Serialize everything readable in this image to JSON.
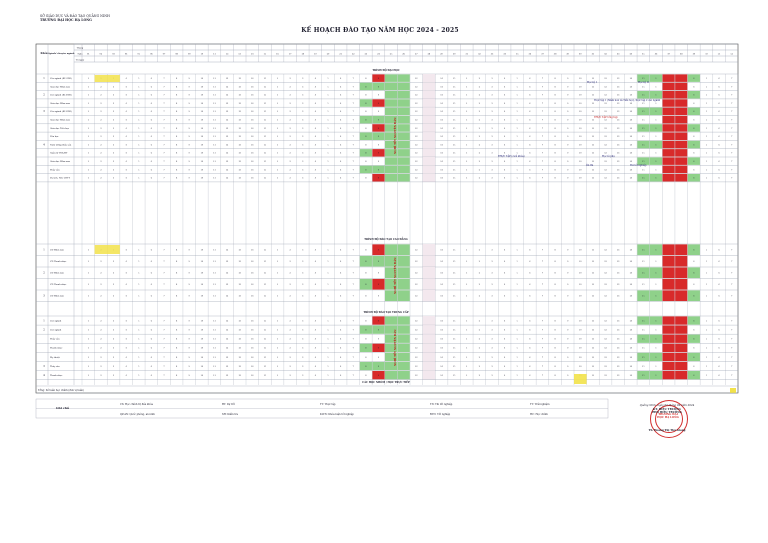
{
  "header": {
    "org": "Sở Giáo dục và Đào tạo Quảng Ninh",
    "school": "Trường Đại học Hạ Long",
    "title": "KẾ HOẠCH ĐÀO TẠO NĂM HỌC 2024 - 2025"
  },
  "table_head": {
    "col_khoa": "Khóa",
    "col_nganh": "Ngành/ chuyên ngành",
    "row_thang": "Tháng",
    "row_tuan": "Tuần",
    "row_ngay": "Từ ngày"
  },
  "weeks": [
    "01",
    "02",
    "03",
    "04",
    "05",
    "06",
    "07",
    "08",
    "09",
    "10",
    "11",
    "12",
    "13",
    "14",
    "15",
    "16",
    "17",
    "18",
    "19",
    "20",
    "21",
    "22",
    "23",
    "24",
    "25",
    "26",
    "27",
    "28",
    "29",
    "30",
    "31",
    "32",
    "33",
    "34",
    "35",
    "36",
    "37",
    "38",
    "39",
    "40",
    "41",
    "42",
    "43",
    "44",
    "45",
    "46",
    "47",
    "48",
    "49",
    "50",
    "51",
    "52"
  ],
  "sections": [
    "TRÌNH ĐỘ ĐẠI HỌC",
    "TRÌNH ĐỘ ĐÀO TẠO CAO ĐẲNG",
    "TRÌNH ĐỘ ĐÀO TẠO TRUNG CẤP",
    "CÁC HỌC NHÓM / HỌC TRỰC TIẾP"
  ],
  "rows_daihoc": [
    {
      "khoa": "1",
      "nganh": "Các ngành (K15/DH)"
    },
    {
      "khoa": "",
      "nganh": "Giáo dục Mầm non"
    },
    {
      "khoa": "2",
      "nganh": "Các ngành (K14/DH)"
    },
    {
      "khoa": "",
      "nganh": "Giáo dục Mầm non"
    },
    {
      "khoa": "3",
      "nganh": "Các ngành (K13/DH)"
    },
    {
      "khoa": "",
      "nganh": "Giáo dục Mầm non"
    },
    {
      "khoa": "",
      "nganh": "Giáo dục Tiểu học"
    },
    {
      "khoa": "",
      "nganh": "Văn học"
    },
    {
      "khoa": "4",
      "nganh": "Nuôi trồng thủy sản"
    },
    {
      "khoa": "",
      "nganh": "Quản lý TN&MT"
    },
    {
      "khoa": "",
      "nganh": "Giáo dục Mầm non"
    },
    {
      "khoa": "",
      "nganh": "Thủy sản"
    },
    {
      "khoa": "",
      "nganh": "Du lịch, NH, CNTT"
    }
  ],
  "rows_caodang": [
    {
      "khoa": "1",
      "nganh": "CĐ Mầm non"
    },
    {
      "khoa": "",
      "nganh": "CĐ Thanh nhạc"
    },
    {
      "khoa": "2",
      "nganh": "CĐ Mầm non"
    },
    {
      "khoa": "",
      "nganh": "CĐ Thanh nhạc"
    },
    {
      "khoa": "3",
      "nganh": "CĐ Mầm non"
    }
  ],
  "rows_trungcap": [
    {
      "khoa": "1",
      "nganh": "Các ngành"
    },
    {
      "khoa": "2",
      "nganh": "Các ngành"
    },
    {
      "khoa": "",
      "nganh": "Thủy sản"
    },
    {
      "khoa": "",
      "nganh": "Thanh nhạc"
    },
    {
      "khoa": "",
      "nganh": "Mỹ thuật"
    },
    {
      "khoa": "3",
      "nganh": "Thủy sản"
    },
    {
      "khoa": "4",
      "nganh": "Thanh nhạc"
    }
  ],
  "vertical_labels": [
    "NGHỈ TẾT NGUYÊN ĐÁN",
    "NGHỈ TẾT NGUYÊN ĐÁN",
    "NGHỈ TẾT NGUYÊN ĐÁN"
  ],
  "notes": {
    "n1": "Học kỳ I",
    "n2": "Học kỳ II",
    "n3": "Thực tập 1 (Mầm non và Tiểu học), thực tập 2 các ngành",
    "n4": "THỰC TẬP tổng hợp",
    "n5": "THỰC TẬP (cuối khóa)",
    "n6": "Học kì phụ",
    "n7": "Ôn thi",
    "n8": "Thi tốt nghiệp"
  },
  "footer": {
    "total_label": "Tổng: Số tuần học chính (đơn vị tuần)",
    "legend_title": "Ghi chú",
    "legend": [
      "CS: Học chính trị đầu khóa",
      "BT: Dự trữ",
      "TT: Thực tập",
      "TN: Thi tốt nghiệp",
      "TT: Trải nghiệm",
      "QP-AN: Quốc phòng, an ninh",
      "XH: Kiểm tra",
      "KLTN: Khóa luận tốt nghiệp",
      "ĐTN: Tốt nghiệp",
      "HC: Học chính"
    ]
  },
  "signature": {
    "place_date": "Quảng Ninh, ngày 02 tháng 09 năm 2024",
    "role1": "KT. HIỆU TRƯỞNG",
    "role2": "PHÓ HIỆU TRƯỞNG",
    "name": "TS. Hoàng Thị Thu Giang"
  },
  "stamp": "TRƯỜNG ĐẠI HỌC HẠ LONG",
  "colors": {
    "green": "#8fd18a",
    "red": "#d82a2a",
    "yellow": "#f2e24a",
    "orange": "#f4b040",
    "grid": "#9aa0b0"
  }
}
